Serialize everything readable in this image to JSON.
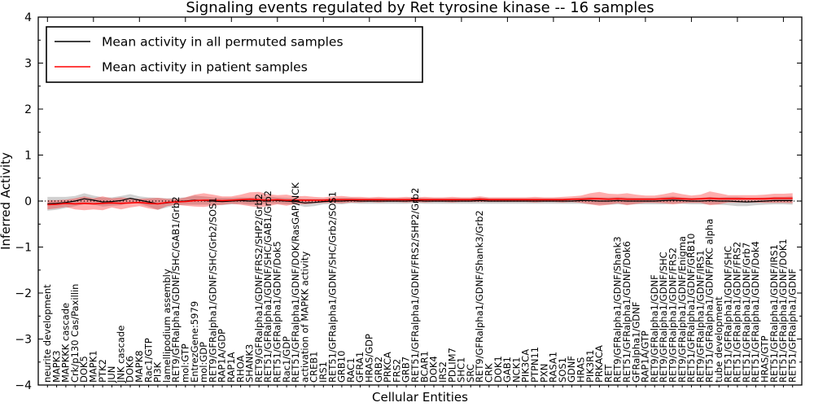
{
  "title": "Signaling events regulated by Ret tyrosine kinase -- 16 samples",
  "axes": {
    "xlabel": "Cellular Entities",
    "ylabel": "Inferred Activity",
    "y_tick_labels": [
      "4",
      "3",
      "2",
      "1",
      "0",
      "−1",
      "−2",
      "−3",
      "−4"
    ]
  },
  "legend": {
    "entries": [
      {
        "label": "Mean activity in all permuted samples",
        "color": "#000000"
      },
      {
        "label": "Mean activity in patient samples",
        "color": "#ff0000"
      }
    ]
  },
  "chart_data": {
    "type": "line",
    "title": "Signaling events regulated by Ret tyrosine kinase -- 16 samples",
    "xlabel": "Cellular Entities",
    "ylabel": "Inferred Activity",
    "ylim": [
      -4,
      4
    ],
    "y_major_tick_step": 1,
    "y_minor_tick_step": 0.5,
    "grid": false,
    "legend_position": "upper left",
    "zero_line": {
      "y": 0,
      "style": "dotted",
      "color": "#000000"
    },
    "categories": [
      "neurite development",
      "MAPK3",
      "MAPKKK cascade",
      "Crk/p130 Cas/Paxillin",
      "DOK5",
      "MAPK1",
      "PTK2",
      "JUN",
      "JNK cascade",
      "DOK6",
      "MAPK8",
      "Rac1/GTP",
      "PI3K",
      "lamellipodium assembly",
      "RET9/GFRalpha1/GDNF/SHC/GAB1/Grb2",
      "mol:GTP",
      "EntrezGene:5979",
      "mol:GDP",
      "RET9/GFRalpha1/GDNF/SHC/Grb2/SOS1",
      "RAP1A/GDP",
      "RAP1A",
      "RHOA",
      "SHANK3",
      "RET9/GFRalpha1/GDNF/FRS2/SHP2/Grb2",
      "RET51/GFRalpha1/GDNF/SHC/GAB1/Grb2",
      "RET51/GFRalpha1/GDNF/Dok5",
      "Rac1/GDP",
      "RET51/GFRalpha1/GDNF/DOK/RasGAP/NCK",
      "activation of MAPKK activity",
      "CREB1",
      "IRS1",
      "RET51/GFRalpha1/GDNF/SHC/Grb2/SOS1",
      "GRB10",
      "RAC1",
      "GFRA1",
      "HRAS/GDP",
      "GRB2",
      "PRKCA",
      "FRS2",
      "GRB7",
      "RET51/GFRalpha1/GDNF/FRS2/SHP2/Grb2",
      "BCAR1",
      "DOK4",
      "IRS2",
      "PDLIM7",
      "SHC1",
      "SRC",
      "RET9/GFRalpha1/GDNF/Shank3/Grb2",
      "CRK",
      "DOK1",
      "GAB1",
      "NCK1",
      "PIK3CA",
      "PTPN11",
      "PXN",
      "RASA1",
      "SOS1",
      "GDNF",
      "HRAS",
      "PIK3R1",
      "PRKACA",
      "RET",
      "RET9/GFRalpha1/GDNF/Shank3",
      "RET51/GFRalpha1/GDNF/Dok6",
      "GFRalpha1/GDNF",
      "RAP1A/GTP",
      "RET9/GFRalpha1/GDNF",
      "RET9/GFRalpha1/GDNF/SHC",
      "RET9/GFRalpha1/GDNF/FRS2",
      "RET9/GFRalpha1/GDNF/Enigma",
      "RET51/GFRalpha1/GDNF/GRB10",
      "RET9/GFRalpha1/GDNF/IRS1",
      "RET51/GFRalpha1/GDNF/PKC alpha",
      "tube development",
      "RET51/GFRalpha1/GDNF/SHC",
      "RET51/GFRalpha1/GDNF/FRS2",
      "RET51/GFRalpha1/GDNF/Grb7",
      "RET51/GFRalpha1/GDNF/Dok4",
      "HRAS/GTP",
      "RET51/GFRalpha1/GDNF/IRS1",
      "RET51/GFRalpha1/GDNF/DOK1",
      "RET51/GFRalpha1/GDNF"
    ],
    "series": [
      {
        "name": "Mean activity in all permuted samples",
        "color": "#000000",
        "band_color": "rgba(0,0,0,0.18)",
        "values": [
          -0.06,
          -0.05,
          -0.03,
          0.0,
          0.05,
          0.02,
          -0.02,
          -0.01,
          0.01,
          0.06,
          0.02,
          -0.02,
          -0.06,
          -0.04,
          -0.01,
          0.0,
          0.02,
          0.01,
          0.0,
          -0.01,
          0.0,
          0.01,
          0.0,
          0.01,
          0.02,
          0.01,
          0.0,
          -0.01,
          -0.04,
          -0.03,
          -0.01,
          0.0,
          0.0,
          0.01,
          0.0,
          0.0,
          0.0,
          0.0,
          0.0,
          0.0,
          0.01,
          0.0,
          0.0,
          0.0,
          0.0,
          0.0,
          0.0,
          0.01,
          0.0,
          0.0,
          0.0,
          0.0,
          0.0,
          0.0,
          0.0,
          0.0,
          0.0,
          0.0,
          0.01,
          0.01,
          0.0,
          0.0,
          0.01,
          0.0,
          0.0,
          0.0,
          0.0,
          0.01,
          0.02,
          0.01,
          0.0,
          0.0,
          0.01,
          0.0,
          0.0,
          -0.01,
          -0.02,
          -0.01,
          0.0,
          0.01,
          0.01,
          0.01
        ],
        "band_halfwidth": [
          0.15,
          0.14,
          0.12,
          0.11,
          0.12,
          0.1,
          0.1,
          0.09,
          0.1,
          0.09,
          0.08,
          0.1,
          0.13,
          0.1,
          0.08,
          0.08,
          0.1,
          0.09,
          0.08,
          0.08,
          0.07,
          0.07,
          0.08,
          0.08,
          0.08,
          0.07,
          0.07,
          0.07,
          0.09,
          0.08,
          0.06,
          0.06,
          0.07,
          0.06,
          0.06,
          0.06,
          0.06,
          0.06,
          0.06,
          0.06,
          0.06,
          0.06,
          0.06,
          0.06,
          0.06,
          0.06,
          0.06,
          0.07,
          0.06,
          0.06,
          0.06,
          0.06,
          0.06,
          0.06,
          0.06,
          0.06,
          0.06,
          0.06,
          0.07,
          0.08,
          0.08,
          0.08,
          0.08,
          0.08,
          0.07,
          0.07,
          0.07,
          0.08,
          0.08,
          0.07,
          0.07,
          0.07,
          0.08,
          0.08,
          0.09,
          0.1,
          0.09,
          0.08,
          0.08,
          0.08,
          0.08,
          0.09
        ]
      },
      {
        "name": "Mean activity in patient samples",
        "color": "#ff0000",
        "band_color": "rgba(255,0,0,0.32)",
        "values": [
          -0.08,
          -0.07,
          -0.05,
          -0.06,
          -0.05,
          -0.06,
          -0.05,
          -0.04,
          -0.05,
          -0.04,
          -0.03,
          -0.05,
          -0.06,
          -0.03,
          -0.02,
          -0.01,
          0.01,
          0.02,
          0.02,
          0.01,
          0.02,
          0.03,
          0.04,
          0.03,
          0.02,
          0.03,
          0.02,
          0.02,
          0.02,
          0.02,
          0.02,
          0.03,
          0.03,
          0.03,
          0.03,
          0.03,
          0.03,
          0.03,
          0.03,
          0.03,
          0.03,
          0.03,
          0.03,
          0.03,
          0.03,
          0.03,
          0.03,
          0.04,
          0.03,
          0.03,
          0.03,
          0.03,
          0.03,
          0.03,
          0.03,
          0.03,
          0.03,
          0.04,
          0.04,
          0.05,
          0.05,
          0.04,
          0.05,
          0.04,
          0.04,
          0.04,
          0.04,
          0.05,
          0.06,
          0.05,
          0.04,
          0.05,
          0.06,
          0.05,
          0.05,
          0.05,
          0.05,
          0.05,
          0.05,
          0.06,
          0.06,
          0.06
        ],
        "band_halfwidth": [
          0.1,
          0.09,
          0.08,
          0.12,
          0.15,
          0.12,
          0.15,
          0.1,
          0.13,
          0.1,
          0.08,
          0.11,
          0.13,
          0.08,
          0.06,
          0.09,
          0.13,
          0.15,
          0.12,
          0.09,
          0.08,
          0.11,
          0.15,
          0.17,
          0.13,
          0.1,
          0.12,
          0.08,
          0.09,
          0.07,
          0.06,
          0.07,
          0.08,
          0.06,
          0.06,
          0.05,
          0.06,
          0.05,
          0.05,
          0.06,
          0.05,
          0.06,
          0.05,
          0.05,
          0.06,
          0.05,
          0.05,
          0.06,
          0.05,
          0.05,
          0.05,
          0.05,
          0.05,
          0.06,
          0.05,
          0.05,
          0.06,
          0.06,
          0.08,
          0.12,
          0.15,
          0.12,
          0.1,
          0.13,
          0.1,
          0.08,
          0.08,
          0.1,
          0.13,
          0.1,
          0.08,
          0.09,
          0.15,
          0.12,
          0.08,
          0.08,
          0.08,
          0.08,
          0.09,
          0.1,
          0.1,
          0.11
        ]
      }
    ]
  }
}
